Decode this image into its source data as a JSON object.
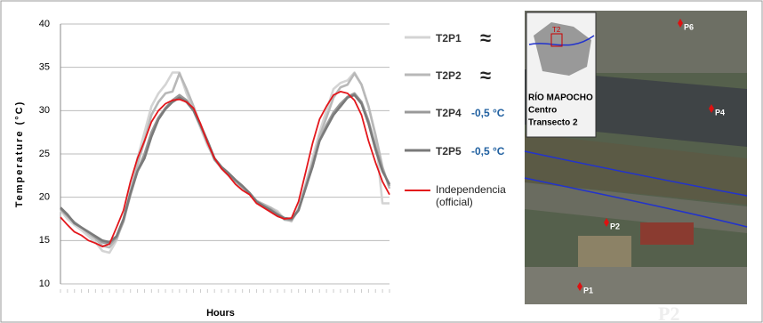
{
  "chart_data": {
    "type": "line",
    "x_label": "Hours",
    "y_label": "Temperature (°C)",
    "categories": [
      null,
      null,
      null,
      null,
      null,
      null,
      null,
      null,
      null,
      null,
      null,
      null,
      null,
      null,
      null,
      null,
      null,
      null,
      null,
      null,
      null,
      null,
      null,
      null,
      null,
      null,
      null,
      null,
      null,
      null,
      null,
      null,
      null,
      null,
      null,
      null,
      null,
      null,
      null,
      null,
      null,
      null,
      null,
      null,
      null,
      null,
      null,
      null
    ],
    "ylim": [
      10,
      40
    ],
    "yticks": [
      10,
      15,
      20,
      25,
      30,
      35,
      40
    ],
    "grid": true,
    "series": [
      {
        "name": "T2P1",
        "color": "#d4d4d4",
        "annotation": "≈",
        "values": [
          18.5,
          17.5,
          16.8,
          16.2,
          15.5,
          14.8,
          13.8,
          13.6,
          15,
          17.5,
          21,
          24.5,
          27.5,
          30.5,
          32,
          33,
          34.4,
          34.4,
          32,
          30,
          28,
          26,
          24.5,
          23.3,
          22.5,
          21.8,
          21,
          20.5,
          19.5,
          19.2,
          18.8,
          18.4,
          17.5,
          17.2,
          18.8,
          21.5,
          24.5,
          27.5,
          30,
          32.5,
          33.2,
          33.5,
          34.4,
          33,
          30.5,
          27,
          19.3,
          19.3
        ]
      },
      {
        "name": "T2P2",
        "color": "#b8b8b8",
        "annotation": "≈",
        "values": [
          18.6,
          17.8,
          17,
          16.5,
          15.8,
          15.2,
          14.4,
          14.2,
          15.2,
          17.2,
          20.5,
          23.8,
          26.5,
          29.5,
          31,
          32,
          32.2,
          34.3,
          32.5,
          30.5,
          28.3,
          26.2,
          24.3,
          23.4,
          22.6,
          21.9,
          21.1,
          20.5,
          19.6,
          19.2,
          18.8,
          18.2,
          17.4,
          17.3,
          18.6,
          21.2,
          24,
          27,
          29.2,
          31.5,
          32.7,
          33,
          34.3,
          33,
          30.5,
          27.2,
          23.5,
          21
        ]
      },
      {
        "name": "T2P4",
        "color": "#9a9a9a",
        "annotation": "-0,5 °C",
        "values": [
          18.7,
          17.9,
          17.1,
          16.5,
          16,
          15.4,
          14.8,
          14.6,
          15.4,
          17.3,
          20.3,
          23,
          25,
          27.5,
          29.2,
          30.3,
          31.2,
          31.8,
          31.2,
          30.1,
          28.4,
          26.5,
          24.4,
          23.4,
          22.7,
          21.9,
          21.2,
          20.4,
          19.5,
          19,
          18.6,
          18,
          17.5,
          17.4,
          18.5,
          21,
          23.7,
          26.5,
          28.3,
          29.8,
          30.8,
          31.6,
          32,
          31,
          28.8,
          25.8,
          23.2,
          21.3
        ]
      },
      {
        "name": "T2P5",
        "color": "#7a7a7a",
        "annotation": "-0,5 °C",
        "values": [
          18.8,
          18,
          17,
          16.5,
          16,
          15.5,
          15,
          14.8,
          15.5,
          17.5,
          20.5,
          23,
          24.5,
          27,
          29,
          30.2,
          31,
          31.5,
          31,
          30,
          28.3,
          26.5,
          24.5,
          23.5,
          22.8,
          22,
          21.3,
          20.5,
          19.5,
          19,
          18.5,
          18,
          17.6,
          17.5,
          18.5,
          21,
          23.5,
          26.5,
          28,
          29.5,
          30.5,
          31.5,
          31.8,
          30.8,
          28.5,
          25.5,
          23,
          21.5
        ]
      },
      {
        "name": "Independencia (official)",
        "color": "#e3161b",
        "values": [
          17.7,
          16.8,
          16,
          15.6,
          15,
          14.7,
          14.3,
          14.6,
          16.5,
          18.5,
          21.8,
          24.5,
          26.5,
          28.7,
          30,
          30.8,
          31.2,
          31.3,
          31,
          30.3,
          28.5,
          26.3,
          24.5,
          23.3,
          22.5,
          21.5,
          20.8,
          20.3,
          19.3,
          18.8,
          18.3,
          17.8,
          17.5,
          17.6,
          19.5,
          22.8,
          26.2,
          29,
          30.5,
          31.8,
          32.2,
          32,
          31.2,
          29.5,
          26.5,
          24,
          21.8,
          20.3
        ]
      }
    ]
  },
  "map": {
    "title": "RÍO MAPOCHO",
    "line2": "Centro",
    "line3": "Transecto 2",
    "inset_label": "T2",
    "points": [
      "P6",
      "P4",
      "P2",
      "P1"
    ],
    "watermark": "P2"
  }
}
